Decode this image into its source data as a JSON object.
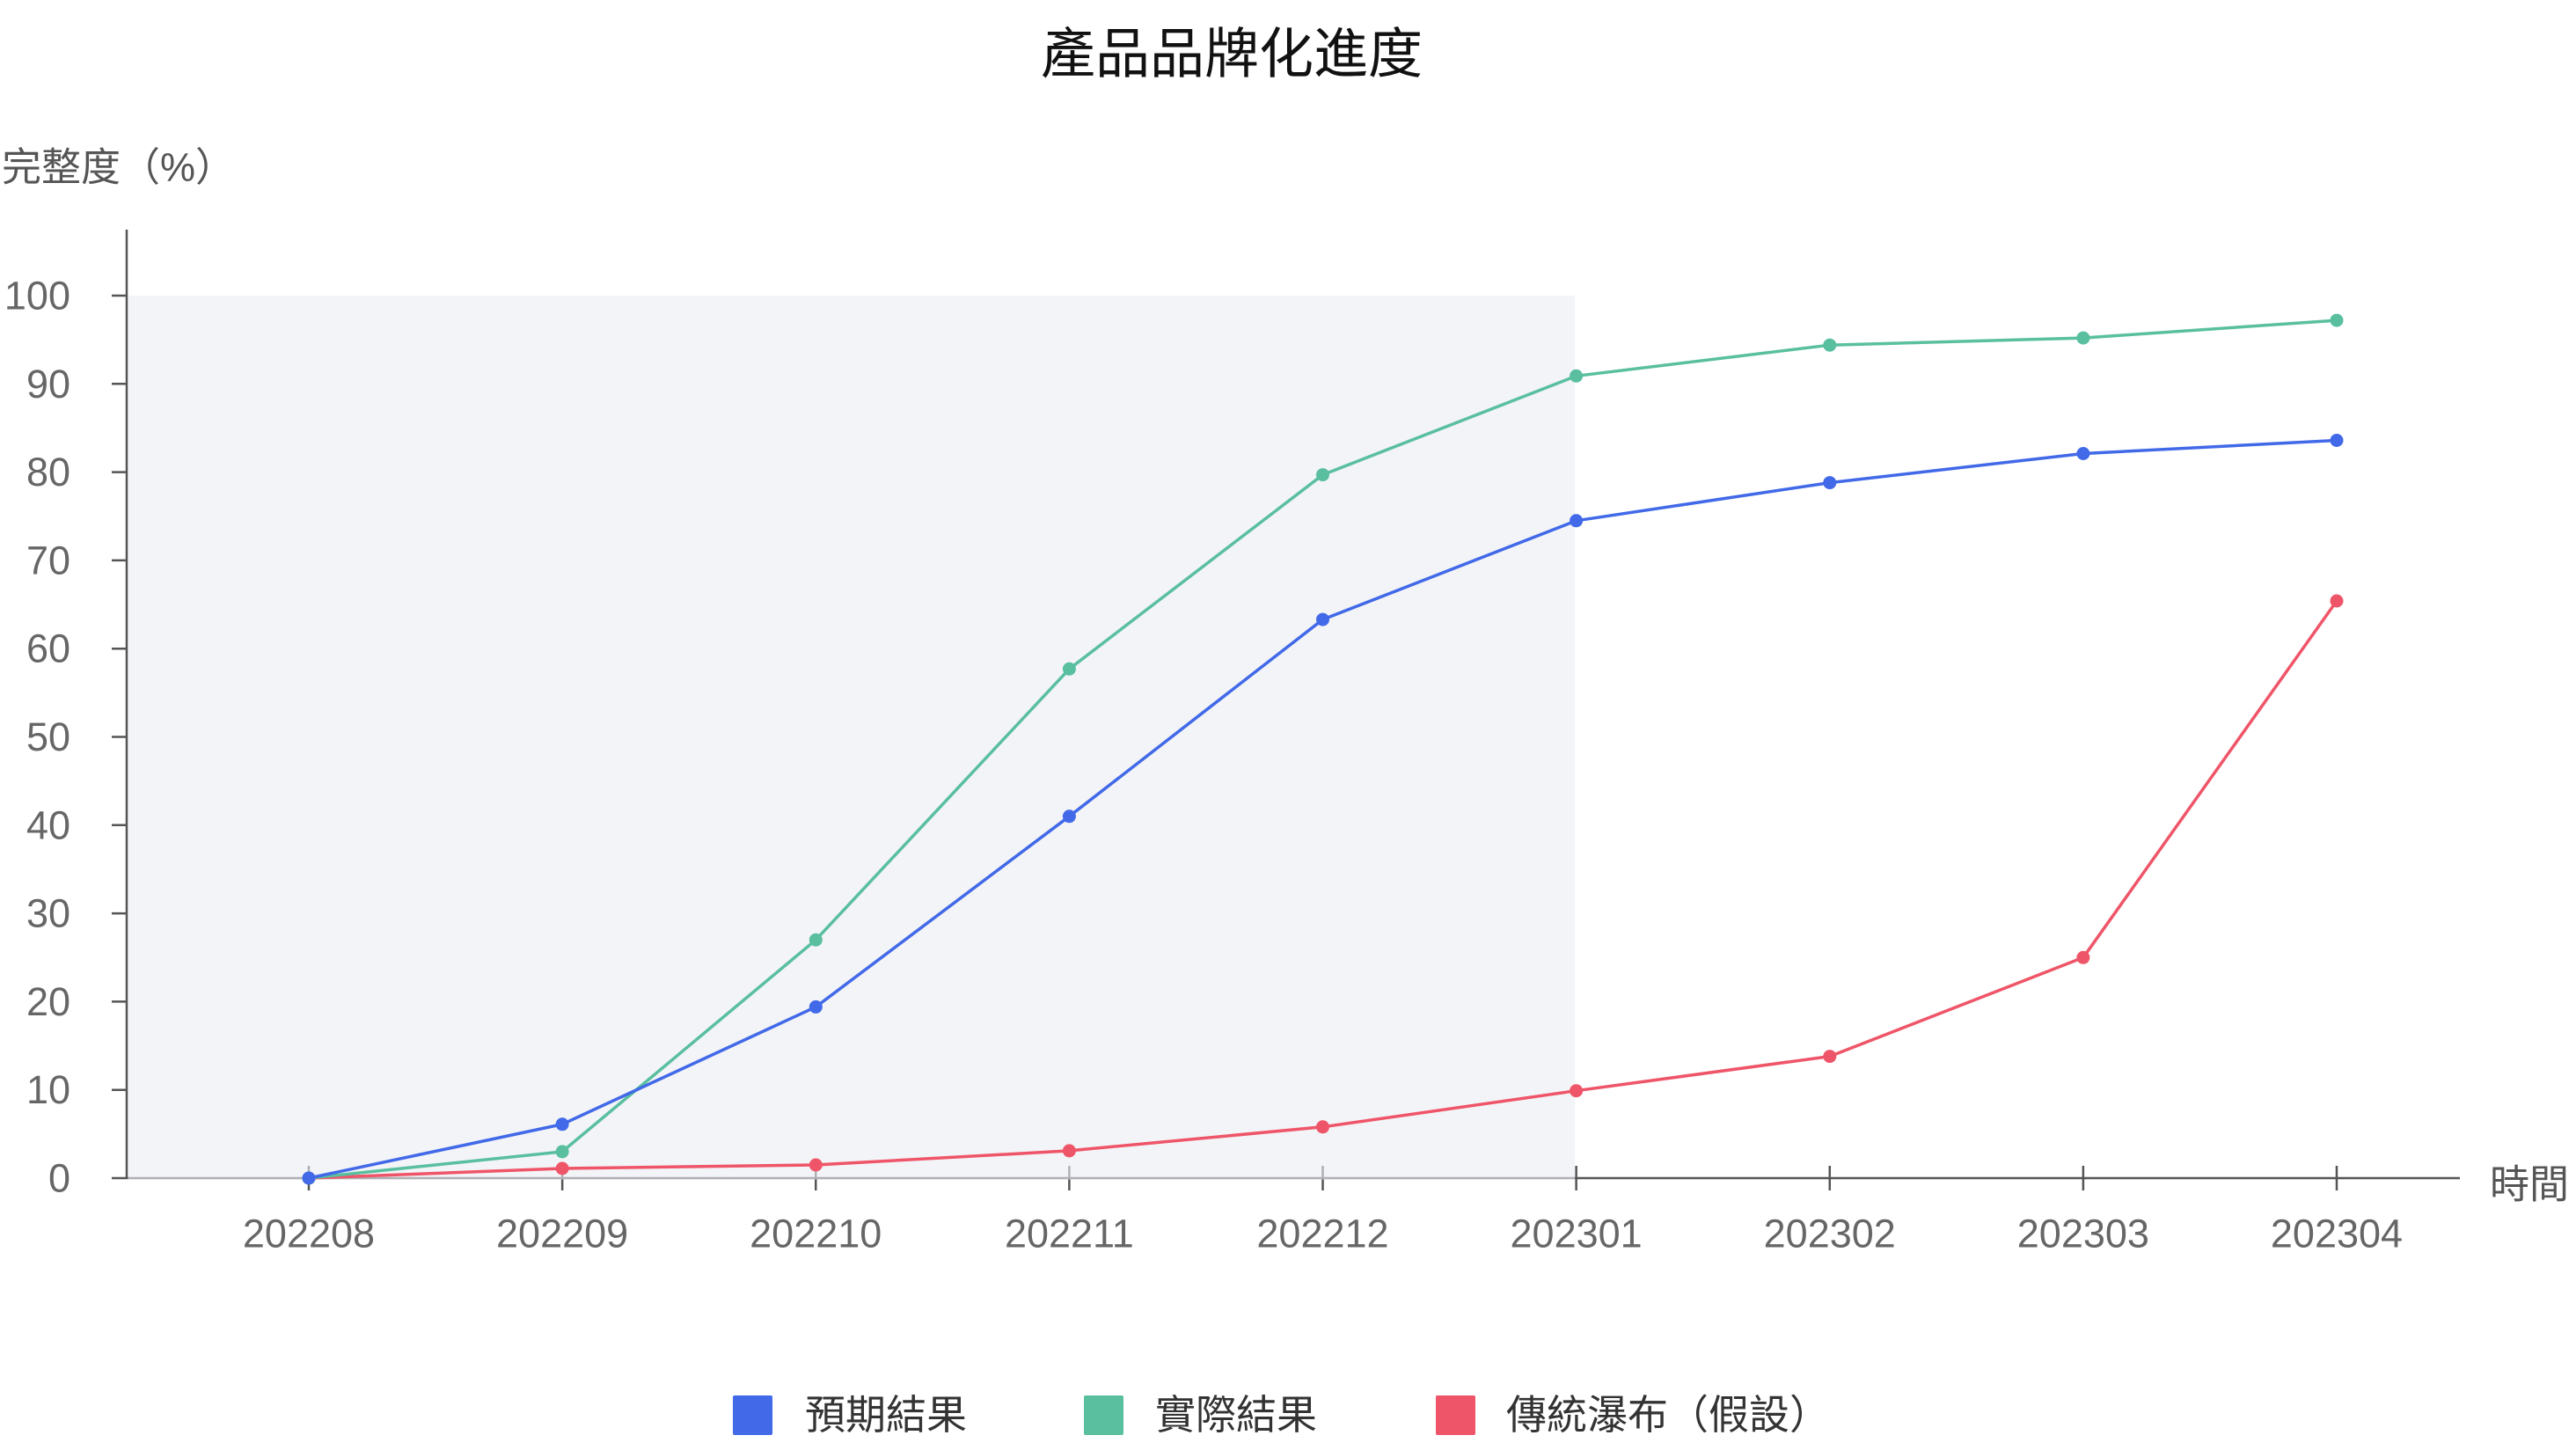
{
  "chart_data": {
    "type": "line",
    "title": "產品品牌化進度",
    "xlabel": "時間",
    "ylabel": "完整度（%）",
    "categories": [
      "202208",
      "202209",
      "202210",
      "202211",
      "202212",
      "202301",
      "202302",
      "202303",
      "202304"
    ],
    "ylim": [
      0,
      100
    ],
    "yticks": [
      0,
      10,
      20,
      30,
      40,
      50,
      60,
      70,
      80,
      90,
      100
    ],
    "grid": false,
    "legend_position": "bottom",
    "shaded_region": {
      "x_end": "202301",
      "y_range": [
        0,
        100
      ],
      "color": "#EBEDF4"
    },
    "series": [
      {
        "name": "預期結果",
        "color": "#4169E8",
        "values": [
          0,
          6.1,
          19.4,
          41,
          63.3,
          74.5,
          78.8,
          82.1,
          83.6
        ]
      },
      {
        "name": "實際結果",
        "color": "#59BF9F",
        "values": [
          0,
          3,
          27,
          57.7,
          79.7,
          90.9,
          94.4,
          95.2,
          97.2
        ]
      },
      {
        "name": "傳統瀑布（假設）",
        "color": "#EF5568",
        "values": [
          0,
          1.1,
          1.5,
          3.1,
          5.8,
          9.9,
          13.8,
          25,
          65.4
        ]
      }
    ]
  }
}
